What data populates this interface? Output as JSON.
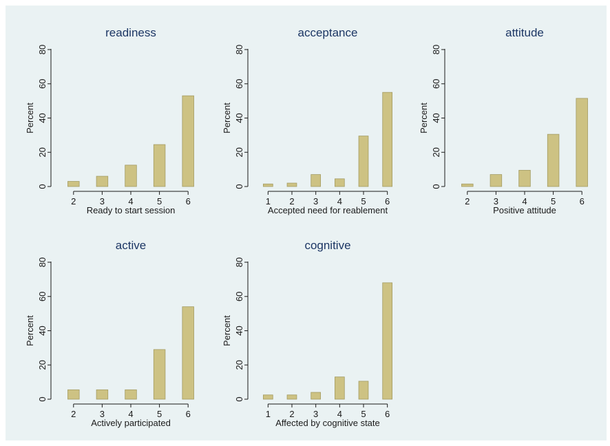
{
  "chart_data": [
    {
      "type": "bar",
      "title": "readiness",
      "xlabel": "Ready to start session",
      "ylabel": "Percent",
      "categories": [
        "2",
        "3",
        "4",
        "5",
        "6"
      ],
      "xticks": [
        "2",
        "3",
        "4",
        "5",
        "6"
      ],
      "xlim": [
        1.5,
        6.5
      ],
      "ylim": [
        0,
        80
      ],
      "yticks": [
        "0",
        "20",
        "40",
        "60",
        "80"
      ],
      "values": [
        3,
        6,
        12.5,
        24.5,
        53
      ],
      "bar_color": "#cdc283",
      "grid": false
    },
    {
      "type": "bar",
      "title": "acceptance",
      "xlabel": "Accepted need for reablement",
      "ylabel": "Percent",
      "categories": [
        "1",
        "2",
        "3",
        "4",
        "5",
        "6"
      ],
      "xticks": [
        "1",
        "2",
        "3",
        "4",
        "5",
        "6"
      ],
      "xlim": [
        0.5,
        6.5
      ],
      "ylim": [
        0,
        80
      ],
      "yticks": [
        "0",
        "20",
        "40",
        "60",
        "80"
      ],
      "values": [
        1.5,
        2,
        7,
        4.5,
        29.5,
        55
      ],
      "bar_color": "#cdc283",
      "grid": false
    },
    {
      "type": "bar",
      "title": "attitude",
      "xlabel": "Positive attitude",
      "ylabel": "Percent",
      "categories": [
        "2",
        "3",
        "4",
        "5",
        "6"
      ],
      "xticks": [
        "2",
        "3",
        "4",
        "5",
        "6"
      ],
      "xlim": [
        1.5,
        6.5
      ],
      "ylim": [
        0,
        80
      ],
      "yticks": [
        "0",
        "20",
        "40",
        "60",
        "80"
      ],
      "values": [
        1.5,
        7,
        9.5,
        30.5,
        51.5
      ],
      "bar_color": "#cdc283",
      "grid": false
    },
    {
      "type": "bar",
      "title": "active",
      "xlabel": "Actively participated",
      "ylabel": "Percent",
      "categories": [
        "2",
        "3",
        "4",
        "5",
        "6"
      ],
      "xticks": [
        "2",
        "3",
        "4",
        "5",
        "6"
      ],
      "xlim": [
        1.5,
        6.5
      ],
      "ylim": [
        0,
        80
      ],
      "yticks": [
        "0",
        "20",
        "40",
        "60",
        "80"
      ],
      "values": [
        5.5,
        5.5,
        5.5,
        29,
        54
      ],
      "bar_color": "#cdc283",
      "grid": false
    },
    {
      "type": "bar",
      "title": "cognitive",
      "xlabel": "Affected by cognitive state",
      "ylabel": "Percent",
      "categories": [
        "1",
        "2",
        "3",
        "4",
        "5",
        "6"
      ],
      "xticks": [
        "1",
        "2",
        "3",
        "4",
        "5",
        "6"
      ],
      "xlim": [
        0.5,
        6.5
      ],
      "ylim": [
        0,
        80
      ],
      "yticks": [
        "0",
        "20",
        "40",
        "60",
        "80"
      ],
      "values": [
        2.5,
        2.5,
        4,
        13,
        10.5,
        68
      ],
      "bar_color": "#cdc283",
      "grid": false
    }
  ]
}
